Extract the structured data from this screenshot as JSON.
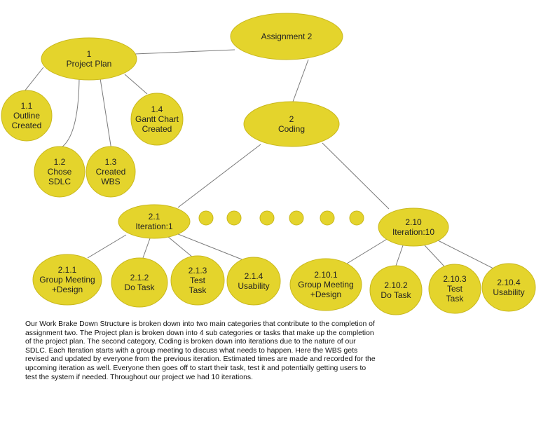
{
  "colors": {
    "node_fill": "#e4d42c",
    "node_stroke": "#c9b81e",
    "connector": "#7a7a7a",
    "text": "#222222"
  },
  "nodes": {
    "assignment2": [
      "Assignment 2"
    ],
    "n1": [
      "1",
      "Project Plan"
    ],
    "n1_1": [
      "1.1",
      "Outline",
      "Created"
    ],
    "n1_2": [
      "1.2",
      "Chose",
      "SDLC"
    ],
    "n1_3": [
      "1.3",
      "Created",
      "WBS"
    ],
    "n1_4": [
      "1.4",
      "Gantt Chart",
      "Created"
    ],
    "n2": [
      "2",
      "Coding"
    ],
    "n2_1": [
      "2.1",
      "Iteration:1"
    ],
    "n2_10": [
      "2.10",
      "Iteration:10"
    ],
    "n2_1_1": [
      "2.1.1",
      "Group Meeting",
      "+Design"
    ],
    "n2_1_2": [
      "2.1.2",
      "Do Task"
    ],
    "n2_1_3": [
      "2.1.3",
      "Test",
      "Task"
    ],
    "n2_1_4": [
      "2.1.4",
      "Usability"
    ],
    "n2_10_1": [
      "2.10.1",
      "Group Meeting",
      "+Design"
    ],
    "n2_10_2": [
      "2.10.2",
      "Do Task"
    ],
    "n2_10_3": [
      "2.10.3",
      "Test",
      "Task"
    ],
    "n2_10_4": [
      "2.10.4",
      "Usability"
    ]
  },
  "description": "Our Work Brake Down Structure is broken down into two main categories that contribute to the completion of assignment two. The Project plan is broken down into 4 sub categories or tasks that make up the completion of the project plan. The second category, Coding is broken down into iterations due to the nature of our SDLC. Each Iteration starts with a group meeting to discuss what needs to happen. Here the WBS gets revised and updated by everyone from the previous iteration. Estimated times are made and recorded for the upcoming iteration as well. Everyone then goes off to start their task, test it and potentially getting users to test the system if needed. Throughout our project we had 10 iterations."
}
